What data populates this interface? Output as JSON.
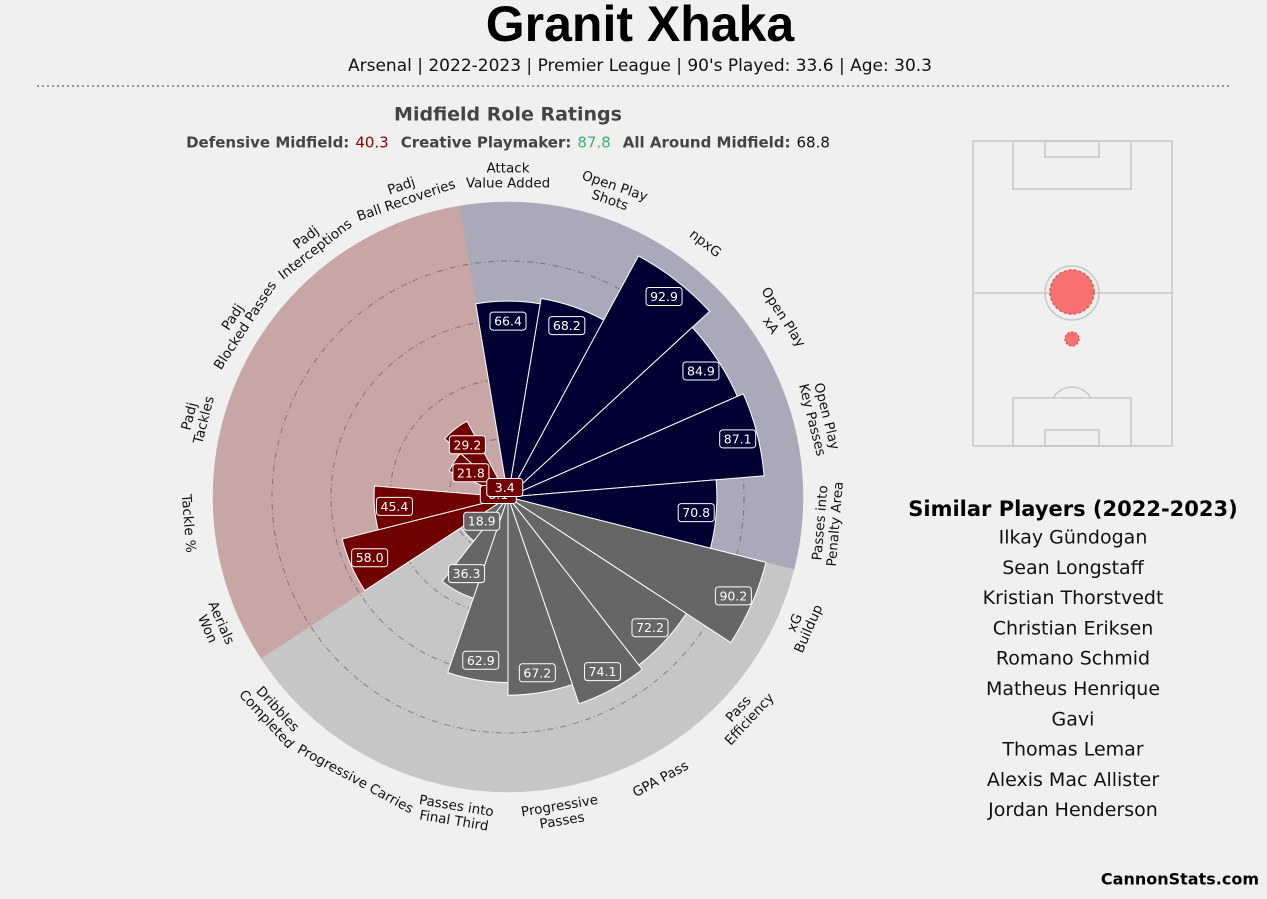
{
  "chart_data": {
    "type": "pizza",
    "title": "Granit Xhaka",
    "subtitle": "Arsenal | 2022-2023 | Premier League | 90's Played: 33.6 | Age: 30.3",
    "chart_title": "Midfield Role Ratings",
    "roles": [
      {
        "name": "Defensive Midfield:",
        "value": 40.3,
        "color": "#8b0000"
      },
      {
        "name": "Creative Playmaker:",
        "value": 87.8,
        "color": "#3cb371"
      },
      {
        "name": "All Around Midfield:",
        "value": 68.8,
        "color": "#111111"
      }
    ],
    "categories": [
      "Attack\nValue Added",
      "Open Play\nShots",
      "npxG",
      "Open Play\nxA",
      "Open Play\nKey Passes",
      "Passes into\nPenalty Area",
      "xG\nBuildup",
      "Pass\nEfficiency",
      "GPA Pass",
      "Progressive\nPasses",
      "Passes into\nFinal Third",
      "Progressive Carries",
      "Dribbles\nCompleted",
      "Aerials\nWon",
      "Tackle %",
      "Padj\nTackles",
      "Padj\nBlocked Passes",
      "Padj\nInterceptions",
      "Padj\nBall Recoveries"
    ],
    "values": [
      66.4,
      68.2,
      92.9,
      84.9,
      87.1,
      70.8,
      90.2,
      72.2,
      74.1,
      67.2,
      62.9,
      36.3,
      18.9,
      58,
      45.4,
      8.1,
      21.8,
      29.2,
      3.4
    ],
    "value_labels": [
      "66.4",
      "68.2",
      "92.9",
      "84.9",
      "87.1",
      "70.8",
      "90.2",
      "72.2",
      "74.1",
      "67.2",
      "62.9",
      "36.3",
      "18.9",
      "58.0",
      "45.4",
      "8.1",
      "21.8",
      "29.2",
      "3.4"
    ],
    "colors": [
      "#000033",
      "#000033",
      "#000033",
      "#000033",
      "#000033",
      "#000033",
      "#666666",
      "#666666",
      "#666666",
      "#666666",
      "#666666",
      "#666666",
      "#666666",
      "#700000",
      "#700000",
      "#700000",
      "#700000",
      "#700000",
      "#700000"
    ],
    "background_colors": [
      "#a9a9b9",
      "#a9a9b9",
      "#a9a9b9",
      "#a9a9b9",
      "#a9a9b9",
      "#a9a9b9",
      "#c6c6c6",
      "#c6c6c6",
      "#c6c6c6",
      "#c6c6c6",
      "#c6c6c6",
      "#c6c6c6",
      "#c6c6c6",
      "#c8a6a6",
      "#c8a6a6",
      "#c8a6a6",
      "#c8a6a6",
      "#c8a6a6",
      "#c8a6a6"
    ],
    "ylim": [
      0,
      100
    ],
    "yticks": [
      20,
      40,
      60,
      80
    ],
    "grid": true
  },
  "similar_players": {
    "title": "Similar Players (2022-2023)",
    "players": [
      "Ilkay Gündogan",
      "Sean Longstaff",
      "Kristian Thorstvedt",
      "Christian Eriksen",
      "Romano Schmid",
      "Matheus Henrique",
      "Gavi",
      "Thomas Lemar",
      "Alexis Mac Allister",
      "Jordan Henderson"
    ]
  },
  "footer": "CannonStats.com"
}
